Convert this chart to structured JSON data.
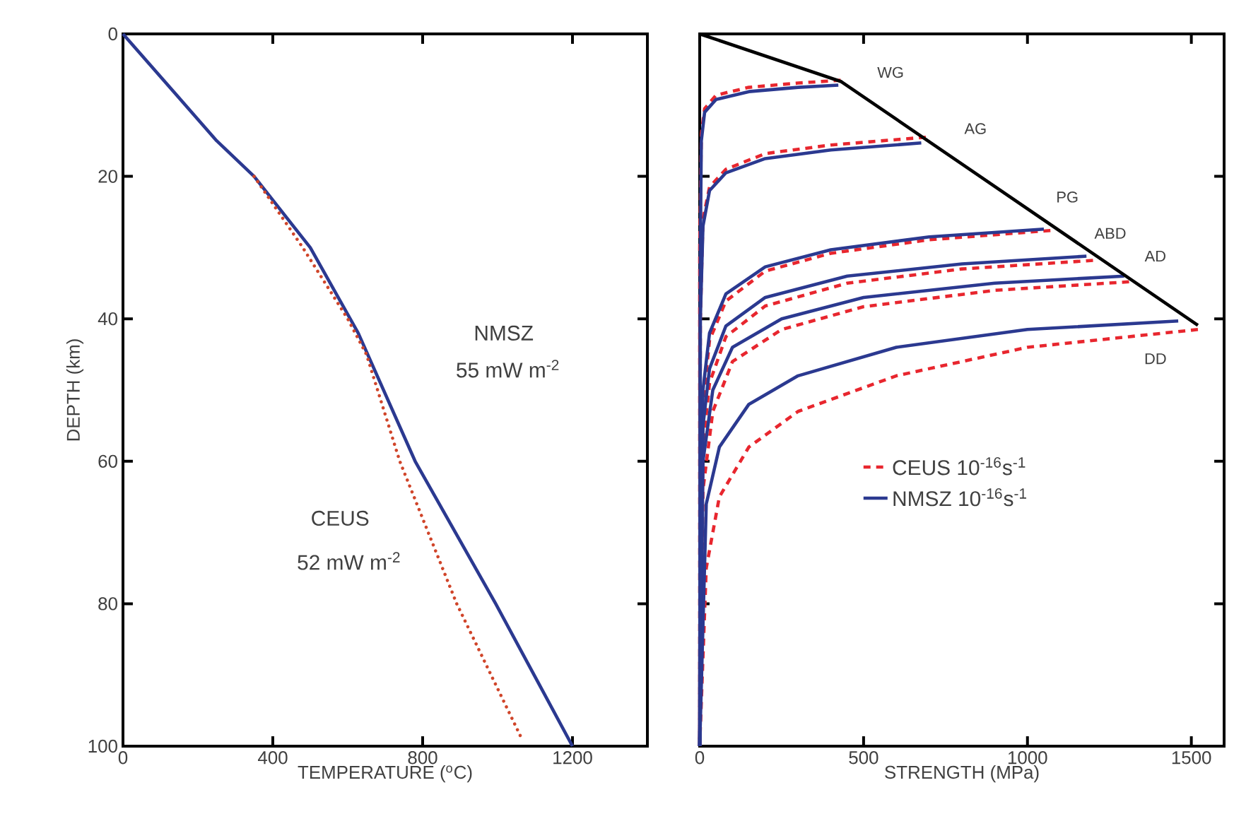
{
  "chart_data": [
    {
      "type": "line",
      "xlabel": "TEMPERATURE ($^{o}$C)",
      "ylabel": "DEPTH (km)",
      "xlim": [
        0,
        1400
      ],
      "ylim": [
        100,
        0
      ],
      "xticks": [
        0,
        400,
        800,
        1200
      ],
      "yticks": [
        0,
        20,
        40,
        60,
        80,
        100
      ],
      "marker": "none",
      "series": [
        {
          "color": "#2b3990",
          "line_style": "solid",
          "x": [
            0,
            250,
            350,
            500,
            628,
            780,
            995,
            1200
          ],
          "values": [
            0,
            15,
            20,
            30,
            42,
            60,
            80,
            100
          ]
        },
        {
          "color": "#d0452a",
          "line_style": "dotted",
          "x": [
            350,
            480,
            600,
            650,
            739,
            891,
            1065
          ],
          "values": [
            20,
            30,
            40,
            45,
            60,
            80,
            99
          ]
        }
      ],
      "annotations": [
        "NMSZ",
        "55 mW m$^{-2}$",
        "CEUS",
        "52 mW m$^{-2}$"
      ]
    },
    {
      "type": "line",
      "xlabel": "STRENGTH (MPa)",
      "xlim": [
        0,
        1600
      ],
      "ylim": [
        100,
        0
      ],
      "xticks": [
        0,
        500,
        1000,
        1500
      ],
      "yticks": [
        0,
        20,
        40,
        60,
        80,
        100
      ],
      "tick_labels": "x",
      "marker": "none",
      "legend": "center",
      "series": [
        {
          "name": "CEUS 10$^{-16}$s$^{-1}$",
          "color": "#e8262e",
          "line_style": "dashed",
          "x": [
            430,
            300,
            150,
            50,
            15,
            5,
            0,
            0
          ],
          "values": [
            6.5,
            6.9,
            7.5,
            8.6,
            10.5,
            14,
            30,
            100
          ]
        },
        {
          "color": "#e8262e",
          "line_style": "dashed",
          "x": [
            690,
            400,
            200,
            80,
            30,
            10,
            2,
            0
          ],
          "values": [
            14.5,
            15.6,
            16.8,
            19,
            21.5,
            26,
            40,
            100
          ]
        },
        {
          "color": "#e8262e",
          "line_style": "dashed",
          "x": [
            1070,
            700,
            400,
            200,
            80,
            30,
            10,
            0
          ],
          "values": [
            27.6,
            28.9,
            30.8,
            33.3,
            37.5,
            43,
            52,
            100
          ]
        },
        {
          "color": "#e8262e",
          "line_style": "dashed",
          "x": [
            1200,
            800,
            450,
            200,
            80,
            30,
            10,
            0
          ],
          "values": [
            31.8,
            33,
            35,
            38.2,
            42.5,
            49,
            58,
            100
          ]
        },
        {
          "color": "#e8262e",
          "line_style": "dashed",
          "x": [
            1310,
            900,
            500,
            250,
            100,
            40,
            10,
            0
          ],
          "values": [
            34.8,
            36,
            38.3,
            41.5,
            46,
            53,
            64,
            100
          ]
        },
        {
          "color": "#e8262e",
          "line_style": "dashed",
          "x": [
            1520,
            1000,
            600,
            300,
            150,
            60,
            20,
            0
          ],
          "values": [
            41.5,
            44,
            48,
            53,
            58,
            65,
            75,
            100
          ]
        },
        {
          "name": "NMSZ 10$^{-16}$s$^{-1}$",
          "color": "#2b3990",
          "line_style": "solid",
          "x": [
            423,
            300,
            150,
            50,
            15,
            5,
            2,
            0
          ],
          "values": [
            7.2,
            7.5,
            8.1,
            9.2,
            11,
            15,
            30,
            100
          ]
        },
        {
          "color": "#2b3990",
          "line_style": "solid",
          "x": [
            676,
            400,
            200,
            80,
            30,
            10,
            2,
            0
          ],
          "values": [
            15.3,
            16.3,
            17.5,
            19.5,
            22,
            27,
            40,
            100
          ]
        },
        {
          "color": "#2b3990",
          "line_style": "solid",
          "x": [
            1050,
            700,
            400,
            200,
            80,
            30,
            10,
            0
          ],
          "values": [
            27.4,
            28.5,
            30.3,
            32.7,
            36.5,
            42,
            50,
            100
          ]
        },
        {
          "color": "#2b3990",
          "line_style": "solid",
          "x": [
            1180,
            800,
            450,
            200,
            80,
            30,
            10,
            0
          ],
          "values": [
            31.2,
            32.3,
            34,
            37,
            41,
            47,
            55,
            100
          ]
        },
        {
          "color": "#2b3990",
          "line_style": "solid",
          "x": [
            1295,
            900,
            500,
            250,
            100,
            40,
            10,
            0
          ],
          "values": [
            34,
            35,
            37,
            40,
            44,
            50,
            60,
            100
          ]
        },
        {
          "color": "#2b3990",
          "line_style": "solid",
          "x": [
            1460,
            1000,
            600,
            300,
            150,
            60,
            20,
            0
          ],
          "values": [
            40.3,
            41.5,
            44,
            48,
            52,
            58,
            66,
            100
          ]
        },
        {
          "color": "#000000",
          "line_style": "solid",
          "x": [
            0,
            432,
            1520
          ],
          "values": [
            0,
            6.7,
            40.9
          ]
        }
      ],
      "annotations": [
        "WG",
        "AG",
        "PG",
        "ABD",
        "AD",
        "DD"
      ]
    }
  ]
}
